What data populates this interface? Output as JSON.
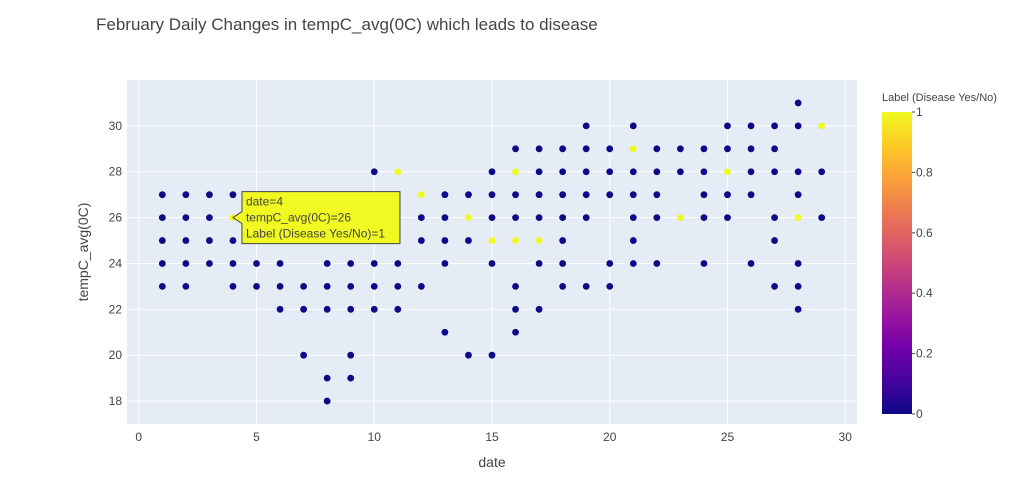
{
  "chart_data": {
    "type": "scatter",
    "title": "February Daily Changes in tempC_avg(0C) which leads to disease",
    "xlabel": "date",
    "ylabel": "tempC_avg(0C)",
    "xlim": [
      -0.5,
      30.5
    ],
    "ylim": [
      17,
      32
    ],
    "x_ticks": [
      0,
      5,
      10,
      15,
      20,
      25,
      30
    ],
    "y_ticks": [
      18,
      20,
      22,
      24,
      26,
      28,
      30
    ],
    "grid": true,
    "colorbar": {
      "title": "Label (Disease Yes/No)",
      "range": [
        0,
        1
      ],
      "ticks": [
        "0",
        "0.2",
        "0.4",
        "0.6",
        "0.8",
        "1"
      ],
      "colors": [
        "#0d0887",
        "#46039f",
        "#7201a8",
        "#9c179e",
        "#bd3786",
        "#d8576b",
        "#ed7953",
        "#fb9f3a",
        "#fdca26",
        "#f0f921"
      ]
    },
    "points": [
      [
        1,
        27,
        0
      ],
      [
        1,
        26,
        0
      ],
      [
        1,
        25,
        0
      ],
      [
        1,
        24,
        0
      ],
      [
        1,
        23,
        0
      ],
      [
        2,
        27,
        0
      ],
      [
        2,
        26,
        0
      ],
      [
        2,
        25,
        0
      ],
      [
        2,
        24,
        0
      ],
      [
        2,
        23,
        0
      ],
      [
        3,
        27,
        0
      ],
      [
        3,
        26,
        0
      ],
      [
        3,
        25,
        0
      ],
      [
        3,
        24,
        0
      ],
      [
        4,
        27,
        0
      ],
      [
        4,
        26,
        1
      ],
      [
        4,
        25,
        0
      ],
      [
        4,
        24,
        0
      ],
      [
        4,
        23,
        0
      ],
      [
        5,
        24,
        0
      ],
      [
        5,
        23,
        0
      ],
      [
        6,
        24,
        0
      ],
      [
        6,
        23,
        0
      ],
      [
        6,
        22,
        0
      ],
      [
        7,
        23,
        0
      ],
      [
        7,
        22,
        0
      ],
      [
        7,
        20,
        0
      ],
      [
        8,
        24,
        0
      ],
      [
        8,
        23,
        0
      ],
      [
        8,
        22,
        0
      ],
      [
        8,
        19,
        0
      ],
      [
        8,
        18,
        0
      ],
      [
        9,
        24,
        0
      ],
      [
        9,
        23,
        0
      ],
      [
        9,
        22,
        0
      ],
      [
        9,
        20,
        0
      ],
      [
        9,
        19,
        0
      ],
      [
        10,
        28,
        0
      ],
      [
        10,
        24,
        0
      ],
      [
        10,
        23,
        0
      ],
      [
        10,
        22,
        0
      ],
      [
        11,
        28,
        1
      ],
      [
        11,
        24,
        0
      ],
      [
        11,
        23,
        0
      ],
      [
        11,
        22,
        0
      ],
      [
        12,
        27,
        1
      ],
      [
        12,
        26,
        0
      ],
      [
        12,
        25,
        0
      ],
      [
        12,
        23,
        0
      ],
      [
        13,
        27,
        0
      ],
      [
        13,
        26,
        0
      ],
      [
        13,
        25,
        0
      ],
      [
        13,
        24,
        0
      ],
      [
        13,
        21,
        0
      ],
      [
        14,
        27,
        0
      ],
      [
        14,
        26,
        1
      ],
      [
        14,
        25,
        0
      ],
      [
        14,
        20,
        0
      ],
      [
        15,
        28,
        0
      ],
      [
        15,
        27,
        0
      ],
      [
        15,
        26,
        0
      ],
      [
        15,
        25,
        1
      ],
      [
        15,
        24,
        0
      ],
      [
        15,
        20,
        0
      ],
      [
        16,
        29,
        0
      ],
      [
        16,
        28,
        1
      ],
      [
        16,
        27,
        0
      ],
      [
        16,
        26,
        0
      ],
      [
        16,
        25,
        1
      ],
      [
        16,
        23,
        0
      ],
      [
        16,
        22,
        0
      ],
      [
        16,
        21,
        0
      ],
      [
        17,
        29,
        0
      ],
      [
        17,
        28,
        0
      ],
      [
        17,
        27,
        0
      ],
      [
        17,
        26,
        0
      ],
      [
        17,
        25,
        1
      ],
      [
        17,
        24,
        0
      ],
      [
        17,
        22,
        0
      ],
      [
        18,
        29,
        0
      ],
      [
        18,
        28,
        0
      ],
      [
        18,
        27,
        0
      ],
      [
        18,
        26,
        0
      ],
      [
        18,
        25,
        0
      ],
      [
        18,
        24,
        0
      ],
      [
        18,
        23,
        0
      ],
      [
        19,
        30,
        0
      ],
      [
        19,
        29,
        0
      ],
      [
        19,
        28,
        0
      ],
      [
        19,
        27,
        0
      ],
      [
        19,
        26,
        0
      ],
      [
        19,
        23,
        0
      ],
      [
        20,
        29,
        0
      ],
      [
        20,
        28,
        0
      ],
      [
        20,
        27,
        0
      ],
      [
        20,
        24,
        0
      ],
      [
        20,
        23,
        0
      ],
      [
        21,
        30,
        0
      ],
      [
        21,
        29,
        1
      ],
      [
        21,
        28,
        0
      ],
      [
        21,
        27,
        0
      ],
      [
        21,
        26,
        0
      ],
      [
        21,
        25,
        0
      ],
      [
        21,
        24,
        0
      ],
      [
        22,
        29,
        0
      ],
      [
        22,
        28,
        0
      ],
      [
        22,
        27,
        0
      ],
      [
        22,
        26,
        0
      ],
      [
        22,
        24,
        0
      ],
      [
        23,
        29,
        0
      ],
      [
        23,
        28,
        0
      ],
      [
        23,
        26,
        1
      ],
      [
        24,
        29,
        0
      ],
      [
        24,
        28,
        0
      ],
      [
        24,
        27,
        0
      ],
      [
        24,
        26,
        0
      ],
      [
        24,
        24,
        0
      ],
      [
        25,
        30,
        0
      ],
      [
        25,
        29,
        0
      ],
      [
        25,
        28,
        1
      ],
      [
        25,
        27,
        0
      ],
      [
        25,
        26,
        0
      ],
      [
        26,
        30,
        0
      ],
      [
        26,
        29,
        0
      ],
      [
        26,
        28,
        0
      ],
      [
        26,
        27,
        0
      ],
      [
        26,
        24,
        0
      ],
      [
        27,
        30,
        0
      ],
      [
        27,
        29,
        0
      ],
      [
        27,
        28,
        0
      ],
      [
        27,
        26,
        0
      ],
      [
        27,
        25,
        0
      ],
      [
        27,
        23,
        0
      ],
      [
        28,
        31,
        0
      ],
      [
        28,
        30,
        0
      ],
      [
        28,
        28,
        0
      ],
      [
        28,
        27,
        0
      ],
      [
        28,
        26,
        1
      ],
      [
        28,
        24,
        0
      ],
      [
        28,
        23,
        0
      ],
      [
        28,
        22,
        0
      ],
      [
        29,
        30,
        1
      ],
      [
        29,
        28,
        0
      ],
      [
        29,
        26,
        0
      ]
    ],
    "hover": {
      "lines": [
        "date=4",
        "tempC_avg(0C)=26",
        "Label (Disease Yes/No)=1"
      ],
      "point": [
        4,
        26
      ]
    }
  }
}
